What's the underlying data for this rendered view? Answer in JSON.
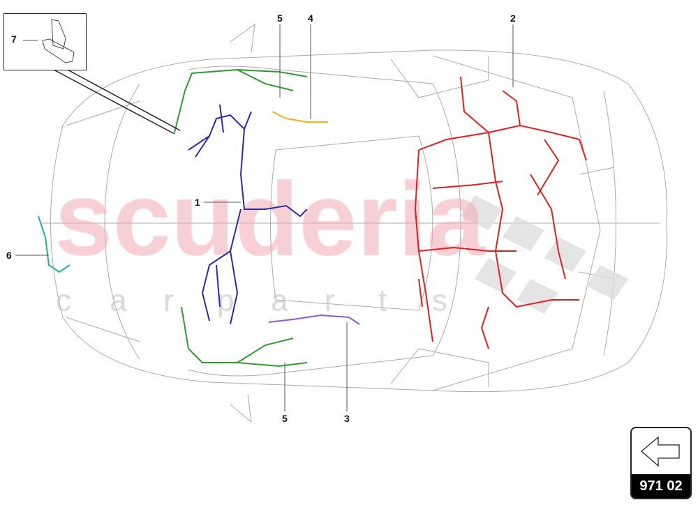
{
  "diagram": {
    "callouts": [
      {
        "id": "1",
        "label": "1"
      },
      {
        "id": "2",
        "label": "2"
      },
      {
        "id": "3",
        "label": "3"
      },
      {
        "id": "4",
        "label": "4"
      },
      {
        "id": "5a",
        "label": "5"
      },
      {
        "id": "5b",
        "label": "5"
      },
      {
        "id": "6",
        "label": "6"
      },
      {
        "id": "7",
        "label": "7"
      }
    ],
    "harness_colors": {
      "1": "#2a2aa8",
      "2": "#e02020",
      "3": "#8a5ad0",
      "4": "#f0b020",
      "5": "#2f9a2f",
      "6": "#20b0a0"
    }
  },
  "watermark": {
    "line1": "scuderia",
    "line2": "carparts"
  },
  "nav": {
    "icon": "arrow-left-icon",
    "page_label": "971 02"
  }
}
